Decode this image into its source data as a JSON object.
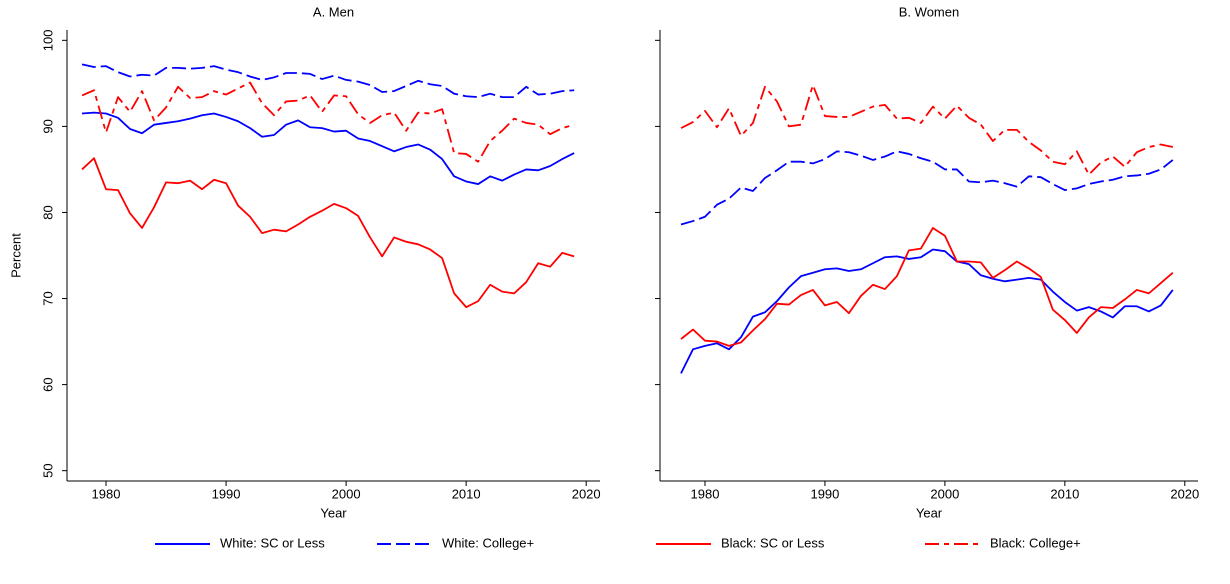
{
  "chart_data": [
    {
      "type": "line",
      "title": "A. Men",
      "xlabel": "Year",
      "ylabel": "Percent",
      "ytick_labels": true,
      "x": [
        1978,
        1979,
        1980,
        1981,
        1982,
        1983,
        1984,
        1985,
        1986,
        1987,
        1988,
        1989,
        1990,
        1991,
        1992,
        1993,
        1994,
        1995,
        1996,
        1997,
        1998,
        1999,
        2000,
        2001,
        2002,
        2003,
        2004,
        2005,
        2006,
        2007,
        2008,
        2009,
        2010,
        2011,
        2012,
        2013,
        2014,
        2015,
        2016,
        2017,
        2018,
        2019
      ],
      "xlim": [
        1976.75,
        2021.15
      ],
      "xticks": [
        1980,
        1990,
        2000,
        2010,
        2020
      ],
      "ylim": [
        48.8,
        101.2
      ],
      "yticks": [
        50,
        60,
        70,
        80,
        90,
        100
      ],
      "legend": "bottom",
      "series": [
        {
          "name": "White: SC or Less",
          "color": "#0000ff",
          "style": "solid",
          "values": [
            91.5,
            91.6,
            91.5,
            91,
            89.7,
            89.2,
            90.2,
            90.4,
            90.6,
            90.9,
            91.3,
            91.5,
            91.1,
            90.6,
            89.8,
            88.8,
            89,
            90.2,
            90.7,
            89.9,
            89.8,
            89.4,
            89.5,
            88.6,
            88.3,
            87.7,
            87.1,
            87.6,
            87.9,
            87.3,
            86.2,
            84.2,
            83.6,
            83.3,
            84.2,
            83.7,
            84.4,
            85,
            84.9,
            85.4,
            86.2,
            86.9
          ]
        },
        {
          "name": "White: College+",
          "color": "#0000ff",
          "style": "longdash",
          "values": [
            97.2,
            96.9,
            97,
            96.3,
            95.8,
            96,
            95.9,
            96.8,
            96.8,
            96.7,
            96.8,
            97,
            96.6,
            96.3,
            95.8,
            95.4,
            95.7,
            96.2,
            96.2,
            96.1,
            95.5,
            95.9,
            95.4,
            95.2,
            94.8,
            94,
            94.1,
            94.7,
            95.3,
            94.9,
            94.7,
            93.8,
            93.5,
            93.4,
            93.8,
            93.4,
            93.4,
            94.6,
            93.7,
            93.8,
            94.1,
            94.2
          ]
        },
        {
          "name": "Black: SC or Less",
          "color": "#ff0000",
          "style": "solid",
          "values": [
            85,
            86.3,
            82.7,
            82.6,
            79.9,
            78.2,
            80.6,
            83.5,
            83.4,
            83.7,
            82.7,
            83.8,
            83.4,
            80.8,
            79.5,
            77.6,
            78,
            77.8,
            78.6,
            79.5,
            80.2,
            81,
            80.5,
            79.6,
            77.1,
            74.9,
            77.1,
            76.6,
            76.3,
            75.7,
            74.7,
            70.6,
            69,
            69.7,
            71.6,
            70.8,
            70.6,
            71.9,
            74.1,
            73.7,
            75.3,
            74.9
          ]
        },
        {
          "name": "Black: College+",
          "color": "#ff0000",
          "style": "dashdot",
          "values": [
            93.6,
            94.2,
            89.3,
            93.4,
            91.7,
            94.1,
            90.7,
            92.2,
            94.6,
            93.3,
            93.4,
            94.1,
            93.7,
            94.4,
            95.1,
            92.7,
            91.3,
            92.9,
            93,
            93.6,
            91.7,
            93.6,
            93.5,
            91.4,
            90.4,
            91.3,
            91.6,
            89.5,
            91.6,
            91.5,
            92,
            86.9,
            86.8,
            85.9,
            88.3,
            89.5,
            90.9,
            90.4,
            90.2,
            89.1,
            89.8,
            90.2
          ]
        }
      ]
    },
    {
      "type": "line",
      "title": "B. Women",
      "xlabel": "Year",
      "ytick_labels": false,
      "x": [
        1978,
        1979,
        1980,
        1981,
        1982,
        1983,
        1984,
        1985,
        1986,
        1987,
        1988,
        1989,
        1990,
        1991,
        1992,
        1993,
        1994,
        1995,
        1996,
        1997,
        1998,
        1999,
        2000,
        2001,
        2002,
        2003,
        2004,
        2005,
        2006,
        2007,
        2008,
        2009,
        2010,
        2011,
        2012,
        2013,
        2014,
        2015,
        2016,
        2017,
        2018,
        2019
      ],
      "xlim": [
        1976.25,
        2021.1
      ],
      "xticks": [
        1980,
        1990,
        2000,
        2010,
        2020
      ],
      "ylim": [
        48.8,
        101.2
      ],
      "yticks": [
        50,
        60,
        70,
        80,
        90,
        100
      ],
      "series": [
        {
          "color": "#0000ff",
          "style": "solid",
          "values": [
            61.3,
            64.1,
            64.5,
            64.8,
            64.1,
            65.5,
            67.9,
            68.4,
            69.7,
            71.3,
            72.6,
            73,
            73.4,
            73.5,
            73.2,
            73.4,
            74.1,
            74.8,
            74.9,
            74.6,
            74.8,
            75.7,
            75.5,
            74.3,
            74,
            72.7,
            72.3,
            72,
            72.2,
            72.4,
            72.2,
            70.8,
            69.6,
            68.6,
            69,
            68.5,
            67.8,
            69.1,
            69.1,
            68.5,
            69.2,
            71
          ]
        },
        {
          "color": "#0000ff",
          "style": "longdash",
          "values": [
            78.6,
            79,
            79.5,
            80.9,
            81.6,
            82.9,
            82.5,
            84,
            84.9,
            85.9,
            85.9,
            85.7,
            86.2,
            87.1,
            87,
            86.6,
            86.1,
            86.5,
            87.1,
            86.8,
            86.3,
            85.9,
            85,
            85,
            83.6,
            83.5,
            83.7,
            83.4,
            83,
            84.2,
            84.1,
            83.3,
            82.6,
            82.8,
            83.3,
            83.6,
            83.8,
            84.2,
            84.3,
            84.5,
            85,
            86.1
          ]
        },
        {
          "color": "#ff0000",
          "style": "solid",
          "values": [
            65.3,
            66.4,
            65.1,
            65,
            64.5,
            64.9,
            66.3,
            67.6,
            69.4,
            69.3,
            70.4,
            71,
            69.2,
            69.6,
            68.3,
            70.3,
            71.6,
            71.1,
            72.6,
            75.6,
            75.8,
            78.2,
            77.3,
            74.3,
            74.3,
            74.2,
            72.4,
            73.3,
            74.3,
            73.5,
            72.5,
            68.7,
            67.5,
            66,
            67.8,
            69,
            68.9,
            69.9,
            71,
            70.6,
            71.8,
            73
          ]
        },
        {
          "color": "#ff0000",
          "style": "dashdot",
          "values": [
            89.8,
            90.5,
            91.8,
            89.9,
            92.1,
            88.9,
            90.4,
            94.6,
            92.9,
            90,
            90.2,
            94.8,
            91.2,
            91.1,
            91.1,
            91.7,
            92.3,
            92.5,
            90.9,
            91,
            90.4,
            92.3,
            90.9,
            92.4,
            91,
            90.2,
            88.3,
            89.6,
            89.6,
            88.2,
            87.2,
            85.9,
            85.6,
            87.1,
            84.4,
            85.8,
            86.5,
            85.3,
            87,
            87.6,
            87.9,
            87.6
          ]
        }
      ]
    }
  ]
}
